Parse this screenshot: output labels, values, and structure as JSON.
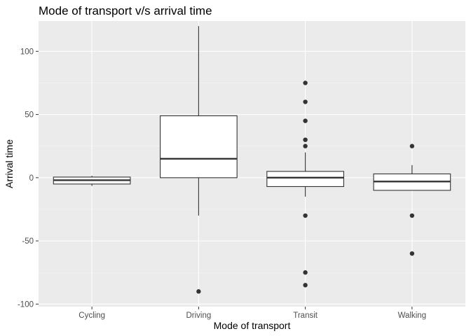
{
  "chart_data": {
    "type": "boxplot",
    "title": "Mode of transport v/s arrival time",
    "xlabel": "Mode of transport",
    "ylabel": "Arrival time",
    "categories": [
      "Cycling",
      "Driving",
      "Transit",
      "Walking"
    ],
    "ylim": [
      -102,
      124
    ],
    "yticks": [
      -100,
      -50,
      0,
      50,
      100
    ],
    "ytick_labels": [
      "-100",
      "-50",
      "0",
      "50",
      "100"
    ],
    "grid": true,
    "boxes": [
      {
        "category": "Cycling",
        "q1": -5,
        "median": -2,
        "q3": 0.5,
        "whisker_low": -6.5,
        "whisker_high": 1.5,
        "outliers": []
      },
      {
        "category": "Driving",
        "q1": 0,
        "median": 15,
        "q3": 49,
        "whisker_low": -30,
        "whisker_high": 120,
        "outliers": [
          -90
        ]
      },
      {
        "category": "Transit",
        "q1": -7,
        "median": 0,
        "q3": 5,
        "whisker_low": -15,
        "whisker_high": 20,
        "outliers": [
          75,
          60,
          45,
          30,
          25,
          -30,
          -75,
          -85
        ]
      },
      {
        "category": "Walking",
        "q1": -10,
        "median": -3,
        "q3": 3,
        "whisker_low": -10,
        "whisker_high": 10,
        "outliers": [
          25,
          -30,
          -60
        ]
      }
    ],
    "colors": {
      "panel": "#ebebeb",
      "grid_major": "#ffffff",
      "grid_minor": "#f5f5f5",
      "box_fill": "#ffffff",
      "line": "#333333",
      "tick_text": "#4d4d4d"
    }
  }
}
